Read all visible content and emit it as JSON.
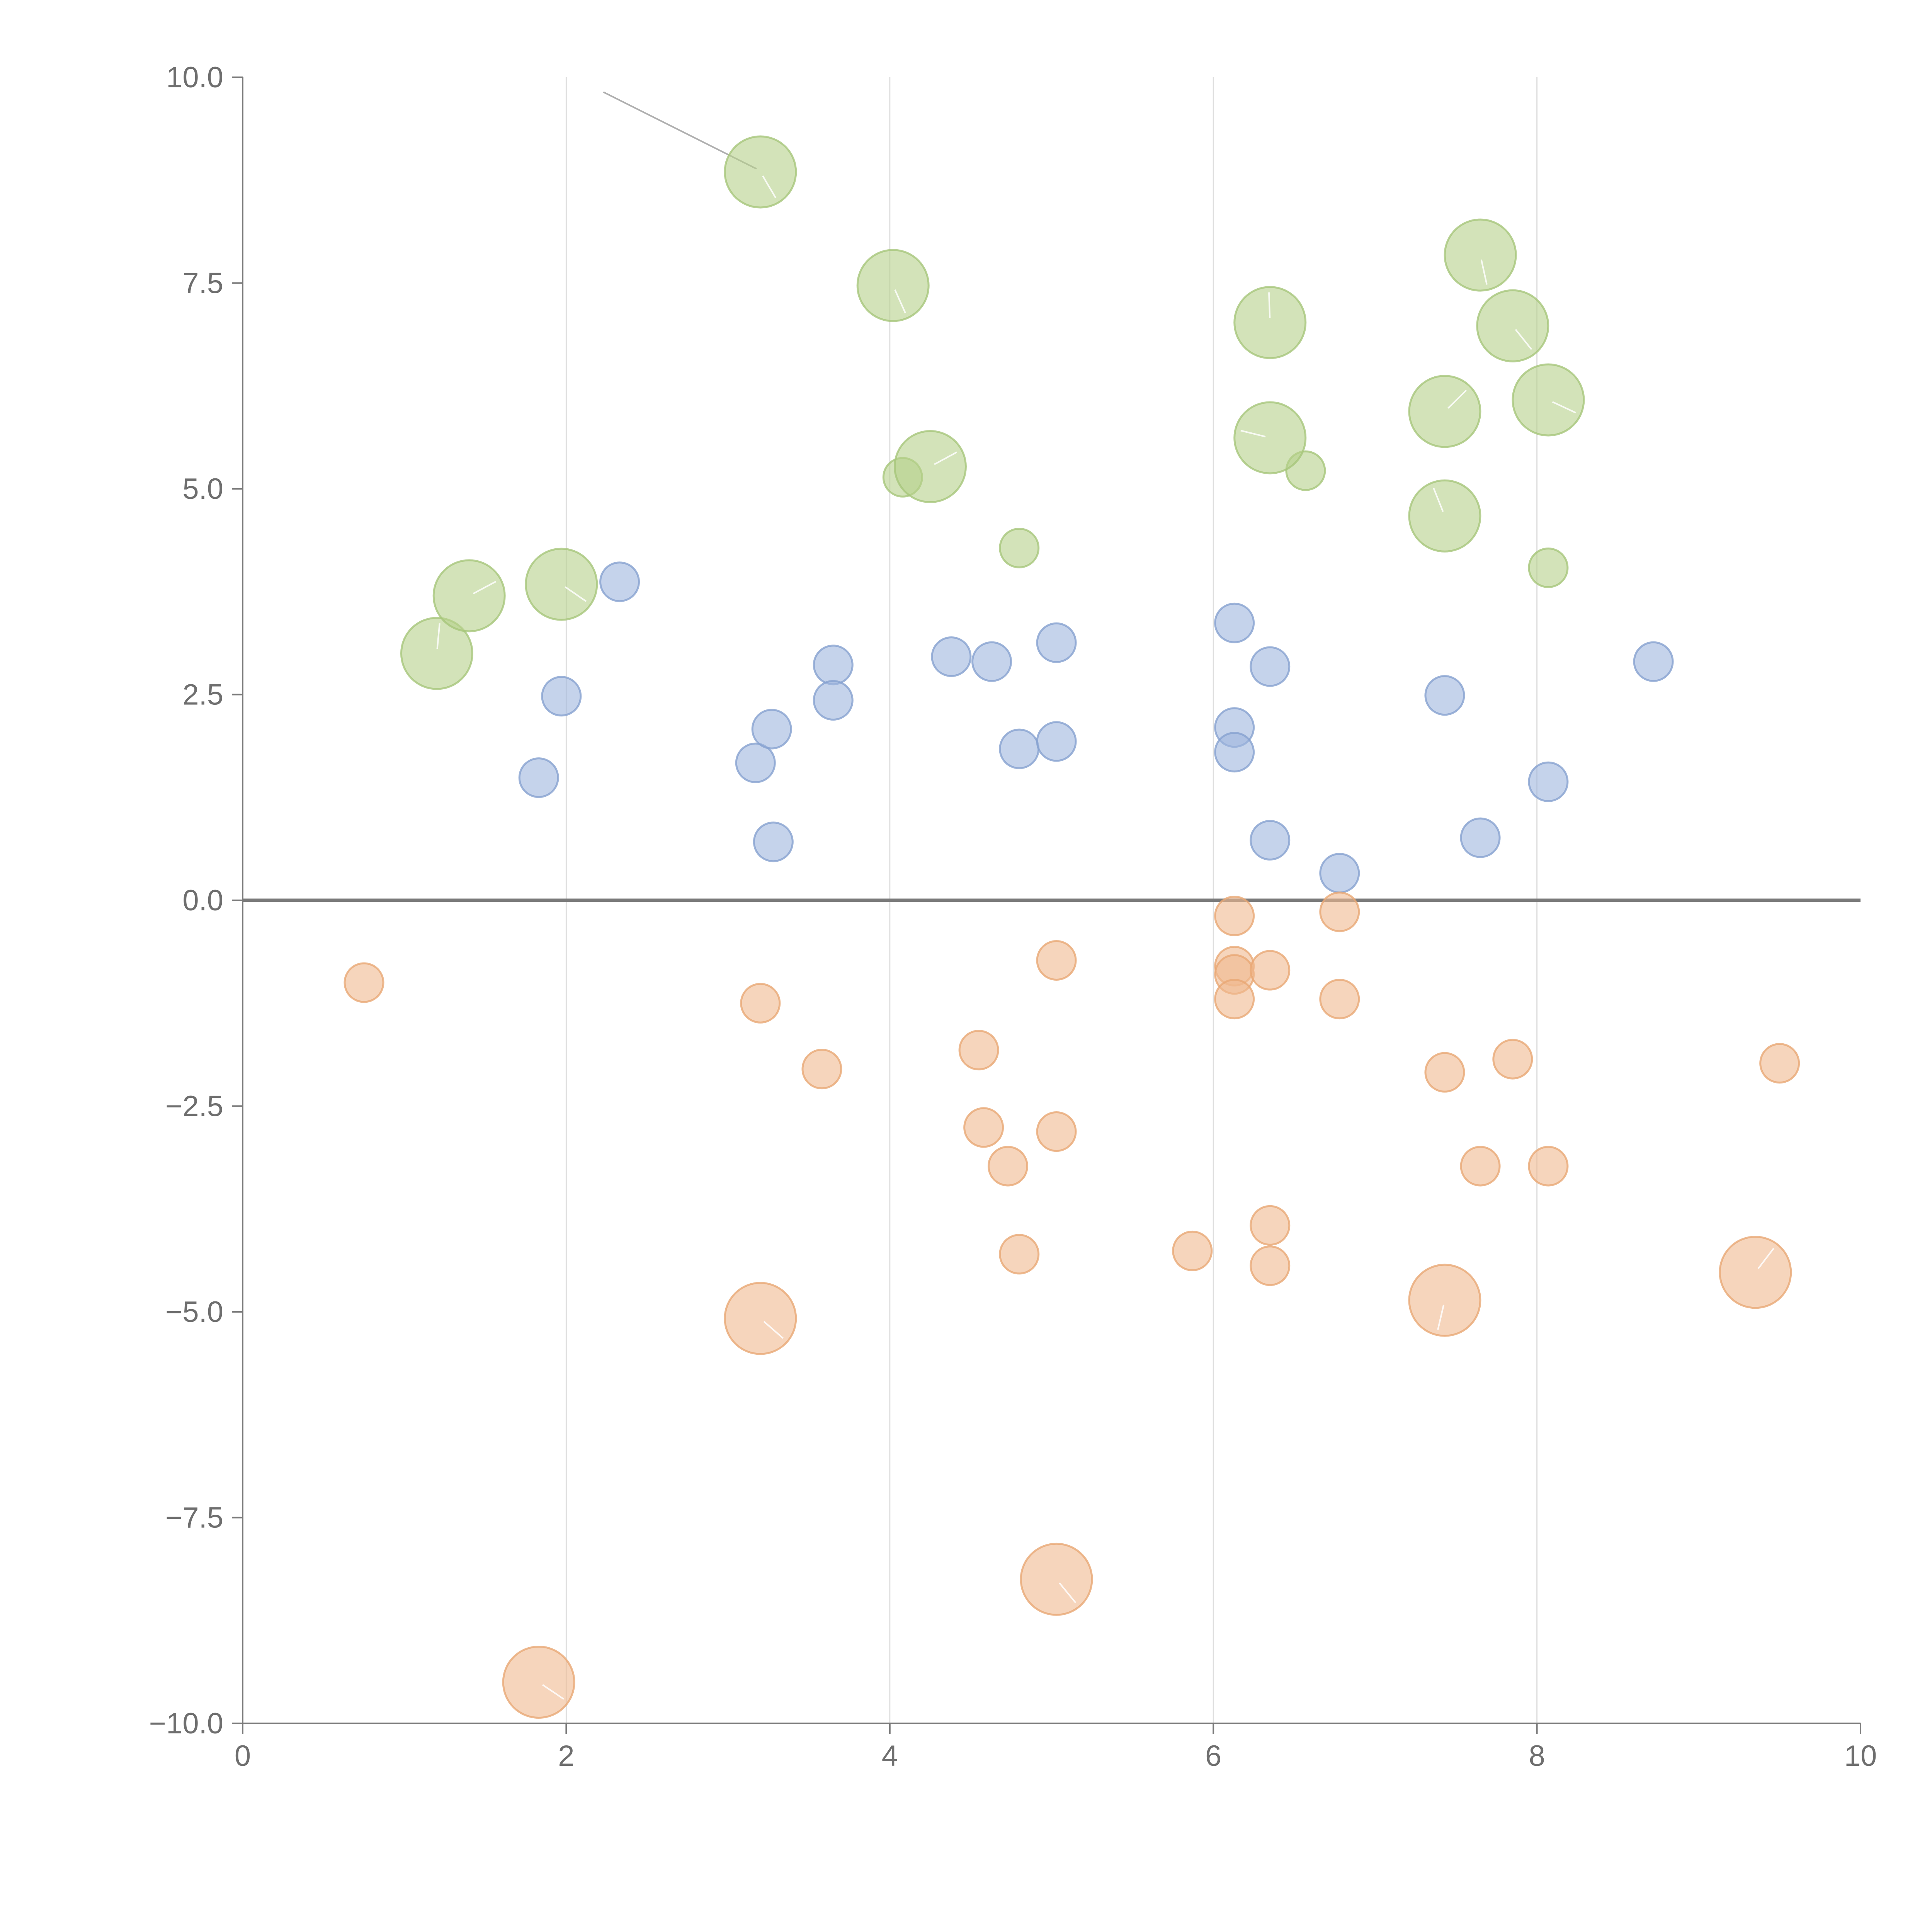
{
  "chart_data": {
    "type": "scatter",
    "title": "",
    "xlabel": "",
    "ylabel": "",
    "xlim": [
      0,
      10
    ],
    "ylim": [
      -10,
      10
    ],
    "x_ticks": [
      0,
      2,
      4,
      6,
      8,
      10
    ],
    "y_ticks": [
      10,
      7.5,
      5,
      2.5,
      0,
      -2.5,
      -5,
      -7.5,
      -10
    ],
    "x_tick_labels": [
      "0",
      "2",
      "4",
      "6",
      "8",
      "10"
    ],
    "y_tick_labels": [
      "10.0",
      "7.5",
      "5.0",
      "2.5",
      "0.0",
      "−2.5",
      "−5.0",
      "−7.5",
      "−10.0"
    ],
    "grid": "vertical",
    "legend": "none",
    "series": [
      {
        "name": "green",
        "color": "#b5d08a",
        "stroke": "#a6c57a",
        "points": [
          {
            "x": 3.2,
            "y": 8.85,
            "size": "large"
          },
          {
            "x": 4.02,
            "y": 7.47,
            "size": "large"
          },
          {
            "x": 4.25,
            "y": 5.27,
            "size": "large"
          },
          {
            "x": 4.08,
            "y": 5.14,
            "size": "small"
          },
          {
            "x": 4.8,
            "y": 4.28,
            "size": "small"
          },
          {
            "x": 1.2,
            "y": 3.0,
            "size": "large"
          },
          {
            "x": 1.4,
            "y": 3.7,
            "size": "large"
          },
          {
            "x": 1.97,
            "y": 3.84,
            "size": "large"
          },
          {
            "x": 6.35,
            "y": 7.02,
            "size": "large"
          },
          {
            "x": 6.35,
            "y": 5.62,
            "size": "large"
          },
          {
            "x": 6.57,
            "y": 5.22,
            "size": "small"
          },
          {
            "x": 7.65,
            "y": 7.84,
            "size": "large"
          },
          {
            "x": 7.85,
            "y": 6.98,
            "size": "large"
          },
          {
            "x": 7.43,
            "y": 5.94,
            "size": "large"
          },
          {
            "x": 8.07,
            "y": 6.08,
            "size": "large"
          },
          {
            "x": 7.43,
            "y": 4.67,
            "size": "large"
          },
          {
            "x": 8.07,
            "y": 4.04,
            "size": "small"
          }
        ]
      },
      {
        "name": "blue",
        "color": "#9fb6dd",
        "stroke": "#86a1d0",
        "points": [
          {
            "x": 2.33,
            "y": 3.87,
            "size": "small"
          },
          {
            "x": 1.97,
            "y": 2.48,
            "size": "small"
          },
          {
            "x": 1.83,
            "y": 1.49,
            "size": "small"
          },
          {
            "x": 3.17,
            "y": 1.67,
            "size": "small"
          },
          {
            "x": 3.27,
            "y": 2.08,
            "size": "small"
          },
          {
            "x": 3.28,
            "y": 0.71,
            "size": "small"
          },
          {
            "x": 3.65,
            "y": 2.86,
            "size": "small"
          },
          {
            "x": 3.65,
            "y": 2.43,
            "size": "small"
          },
          {
            "x": 4.38,
            "y": 2.96,
            "size": "small"
          },
          {
            "x": 4.63,
            "y": 2.9,
            "size": "small"
          },
          {
            "x": 4.8,
            "y": 1.84,
            "size": "small"
          },
          {
            "x": 5.03,
            "y": 3.13,
            "size": "small"
          },
          {
            "x": 5.03,
            "y": 1.93,
            "size": "small"
          },
          {
            "x": 6.13,
            "y": 3.37,
            "size": "small"
          },
          {
            "x": 6.13,
            "y": 2.1,
            "size": "small"
          },
          {
            "x": 6.13,
            "y": 1.8,
            "size": "small"
          },
          {
            "x": 6.35,
            "y": 2.84,
            "size": "small"
          },
          {
            "x": 6.35,
            "y": 0.73,
            "size": "small"
          },
          {
            "x": 6.78,
            "y": 0.33,
            "size": "small"
          },
          {
            "x": 7.43,
            "y": 2.49,
            "size": "small"
          },
          {
            "x": 7.65,
            "y": 0.76,
            "size": "small"
          },
          {
            "x": 8.07,
            "y": 1.44,
            "size": "small"
          },
          {
            "x": 8.72,
            "y": 2.9,
            "size": "small"
          }
        ]
      },
      {
        "name": "orange",
        "color": "#f0b98f",
        "stroke": "#e8a774",
        "points": [
          {
            "x": 0.75,
            "y": -1.0,
            "size": "small"
          },
          {
            "x": 3.2,
            "y": -1.25,
            "size": "small"
          },
          {
            "x": 3.58,
            "y": -2.05,
            "size": "small"
          },
          {
            "x": 3.2,
            "y": -5.08,
            "size": "large"
          },
          {
            "x": 1.83,
            "y": -9.5,
            "size": "large"
          },
          {
            "x": 4.55,
            "y": -1.82,
            "size": "small"
          },
          {
            "x": 4.58,
            "y": -2.76,
            "size": "small"
          },
          {
            "x": 4.73,
            "y": -3.23,
            "size": "small"
          },
          {
            "x": 4.8,
            "y": -4.3,
            "size": "small"
          },
          {
            "x": 5.03,
            "y": -0.73,
            "size": "small"
          },
          {
            "x": 5.03,
            "y": -2.81,
            "size": "small"
          },
          {
            "x": 5.03,
            "y": -8.25,
            "size": "large"
          },
          {
            "x": 5.87,
            "y": -4.26,
            "size": "small"
          },
          {
            "x": 6.13,
            "y": -0.19,
            "size": "small"
          },
          {
            "x": 6.13,
            "y": -0.8,
            "size": "small"
          },
          {
            "x": 6.13,
            "y": -0.9,
            "size": "small"
          },
          {
            "x": 6.13,
            "y": -1.2,
            "size": "small"
          },
          {
            "x": 6.35,
            "y": -0.85,
            "size": "small"
          },
          {
            "x": 6.35,
            "y": -3.95,
            "size": "small"
          },
          {
            "x": 6.35,
            "y": -4.44,
            "size": "small"
          },
          {
            "x": 6.78,
            "y": -0.14,
            "size": "small"
          },
          {
            "x": 6.78,
            "y": -1.2,
            "size": "small"
          },
          {
            "x": 7.43,
            "y": -2.09,
            "size": "small"
          },
          {
            "x": 7.43,
            "y": -4.86,
            "size": "large"
          },
          {
            "x": 7.65,
            "y": -3.23,
            "size": "small"
          },
          {
            "x": 7.85,
            "y": -1.93,
            "size": "small"
          },
          {
            "x": 8.07,
            "y": -3.23,
            "size": "small"
          },
          {
            "x": 9.35,
            "y": -4.52,
            "size": "large"
          },
          {
            "x": 9.5,
            "y": -1.98,
            "size": "small"
          }
        ]
      }
    ]
  }
}
